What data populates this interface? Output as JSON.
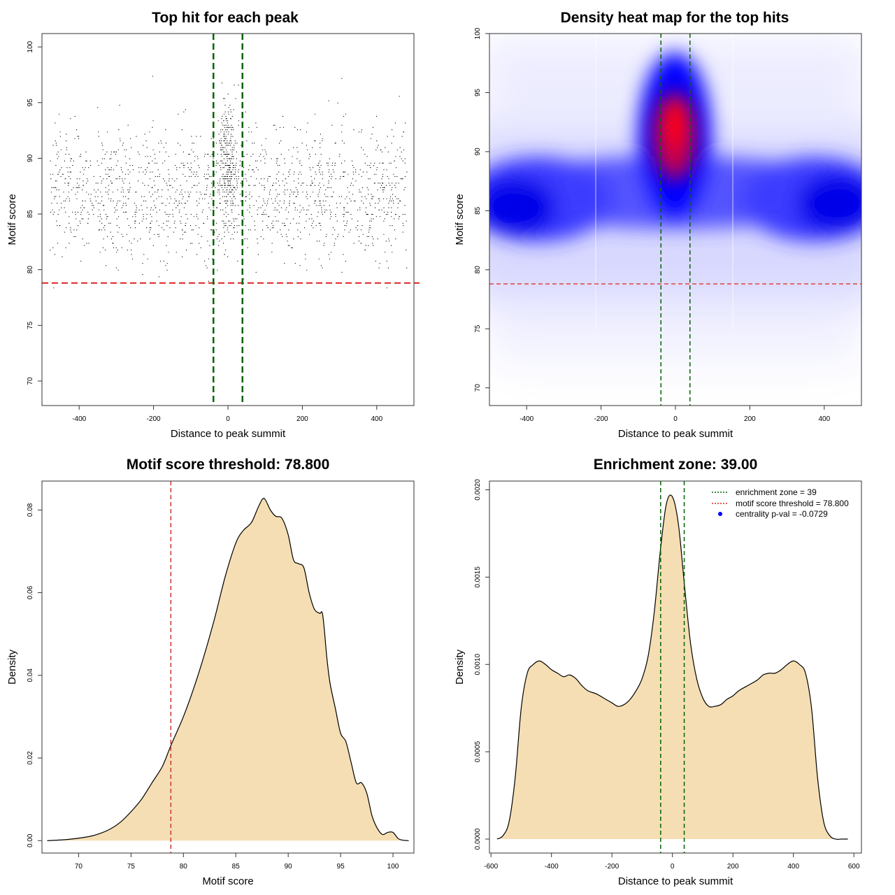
{
  "chart_data": [
    {
      "type": "scatter",
      "title": "Top hit for each peak",
      "xlabel": "Distance to peak summit",
      "ylabel": "Motif score",
      "xlim": [
        -500,
        500
      ],
      "ylim": [
        67.8,
        101.2
      ],
      "xticks": [
        -400,
        -200,
        0,
        200,
        400
      ],
      "yticks": [
        70,
        75,
        80,
        85,
        90,
        95,
        100
      ],
      "xtick_labels": [
        "-400",
        "-200",
        "0",
        "200",
        "400"
      ],
      "ytick_labels": [
        "70",
        "75",
        "80",
        "85",
        "90",
        "95",
        "100"
      ],
      "threshold_y": 78.8,
      "zone_x": [
        -39,
        39
      ],
      "colors": {
        "points": "#000000",
        "threshold": "#dd2222",
        "zone": "#006400"
      }
    },
    {
      "type": "heatmap",
      "title": "Density heat map for the top hits",
      "xlabel": "Distance to peak summit",
      "ylabel": "Motif score",
      "xlim": [
        -500,
        500
      ],
      "ylim": [
        68.5,
        100
      ],
      "xticks": [
        -400,
        -200,
        0,
        200,
        400
      ],
      "yticks": [
        70,
        75,
        80,
        85,
        90,
        95,
        100
      ],
      "xtick_labels": [
        "-400",
        "-200",
        "0",
        "200",
        "400"
      ],
      "ytick_labels": [
        "70",
        "75",
        "80",
        "85",
        "90",
        "95",
        "100"
      ],
      "threshold_y": 78.8,
      "zone_x": [
        -39,
        39
      ],
      "hot_spot": {
        "x": 0,
        "y": 92.5
      },
      "colors": {
        "low": "#ffffff",
        "mid": "#0000ff",
        "high": "#ff0000",
        "threshold": "#dd4444",
        "zone": "#006400"
      }
    },
    {
      "type": "area",
      "title": "Motif score threshold: 78.800",
      "xlabel": "Motif score",
      "ylabel": "Density",
      "xlim": [
        66.5,
        102
      ],
      "ylim": [
        -0.003,
        0.087
      ],
      "xticks": [
        70,
        75,
        80,
        85,
        90,
        95,
        100
      ],
      "yticks": [
        0.0,
        0.02,
        0.04,
        0.06,
        0.08
      ],
      "xtick_labels": [
        "70",
        "75",
        "80",
        "85",
        "90",
        "95",
        "100"
      ],
      "ytick_labels": [
        "0.00",
        "0.02",
        "0.04",
        "0.06",
        "0.08"
      ],
      "x": [
        67,
        69,
        71,
        72,
        73,
        74,
        75,
        76,
        77,
        78,
        78.8,
        80,
        81,
        82,
        83,
        84,
        85,
        85.7,
        86.5,
        87.2,
        87.7,
        88.3,
        88.8,
        89.4,
        90,
        90.5,
        91,
        91.5,
        92,
        92.5,
        93,
        93.3,
        93.7,
        94,
        94.5,
        95,
        95.5,
        96,
        96.5,
        97,
        97.5,
        98,
        98.5,
        99,
        99.5,
        100,
        100.5,
        101,
        101.5
      ],
      "y": [
        0,
        0.0003,
        0.001,
        0.0017,
        0.0028,
        0.0045,
        0.007,
        0.01,
        0.014,
        0.018,
        0.023,
        0.03,
        0.037,
        0.045,
        0.054,
        0.064,
        0.072,
        0.075,
        0.077,
        0.081,
        0.0828,
        0.08,
        0.0785,
        0.078,
        0.074,
        0.068,
        0.067,
        0.066,
        0.06,
        0.056,
        0.055,
        0.0545,
        0.044,
        0.038,
        0.032,
        0.026,
        0.024,
        0.019,
        0.014,
        0.014,
        0.0115,
        0.006,
        0.003,
        0.0015,
        0.002,
        0.002,
        0.0005,
        0.0001,
        0
      ],
      "threshold_x": 78.8,
      "colors": {
        "fill": "#f5deb3",
        "line": "#000000",
        "threshold": "#cc3333"
      }
    },
    {
      "type": "area",
      "title": "Enrichment zone: 39.00",
      "xlabel": "Distance to peak summit",
      "ylabel": "Density",
      "xlim": [
        -605,
        625
      ],
      "ylim": [
        -8e-05,
        0.00205
      ],
      "xticks": [
        -600,
        -400,
        -200,
        0,
        200,
        400,
        600
      ],
      "yticks": [
        0.0,
        0.0005,
        0.001,
        0.0015,
        0.002
      ],
      "xtick_labels": [
        "-600",
        "-400",
        "-200",
        "0",
        "200",
        "400",
        "600"
      ],
      "ytick_labels": [
        "0.0000",
        "0.0005",
        "0.0010",
        "0.0015",
        "0.0020"
      ],
      "x": [
        -580,
        -560,
        -540,
        -520,
        -500,
        -480,
        -460,
        -440,
        -420,
        -400,
        -380,
        -360,
        -340,
        -320,
        -300,
        -280,
        -250,
        -220,
        -200,
        -180,
        -160,
        -140,
        -120,
        -100,
        -80,
        -60,
        -40,
        -20,
        0,
        20,
        40,
        60,
        80,
        100,
        120,
        140,
        160,
        180,
        200,
        220,
        250,
        280,
        300,
        320,
        340,
        360,
        380,
        400,
        420,
        440,
        460,
        480,
        500,
        520,
        540,
        560,
        580
      ],
      "y": [
        0,
        2e-05,
        0.0001,
        0.00035,
        0.00075,
        0.00095,
        0.001,
        0.00102,
        0.001,
        0.00097,
        0.00095,
        0.00093,
        0.00094,
        0.00092,
        0.00088,
        0.00085,
        0.00083,
        0.0008,
        0.00078,
        0.00076,
        0.00077,
        0.0008,
        0.00085,
        0.00092,
        0.00105,
        0.0013,
        0.00165,
        0.00192,
        0.00196,
        0.0018,
        0.00145,
        0.00112,
        0.00092,
        0.00081,
        0.00076,
        0.00076,
        0.00077,
        0.0008,
        0.00082,
        0.00085,
        0.00088,
        0.00091,
        0.00094,
        0.00095,
        0.00095,
        0.00097,
        0.001,
        0.00102,
        0.001,
        0.00095,
        0.00075,
        0.00035,
        0.0001,
        2e-05,
        0,
        0,
        0
      ],
      "zone_x": [
        -39,
        39
      ],
      "legend": {
        "position": "top-right",
        "entries": [
          {
            "label": "enrichment zone = 39",
            "kind": "dotted-line",
            "color": "#006400"
          },
          {
            "label": "motif score threshold = 78.800",
            "kind": "dotted-line",
            "color": "#dd2222"
          },
          {
            "label": "centrality p-val = -0.0729",
            "kind": "point",
            "color": "#0000ff"
          }
        ]
      },
      "colors": {
        "fill": "#f5deb3",
        "line": "#000000",
        "zone": "#006400"
      }
    }
  ]
}
